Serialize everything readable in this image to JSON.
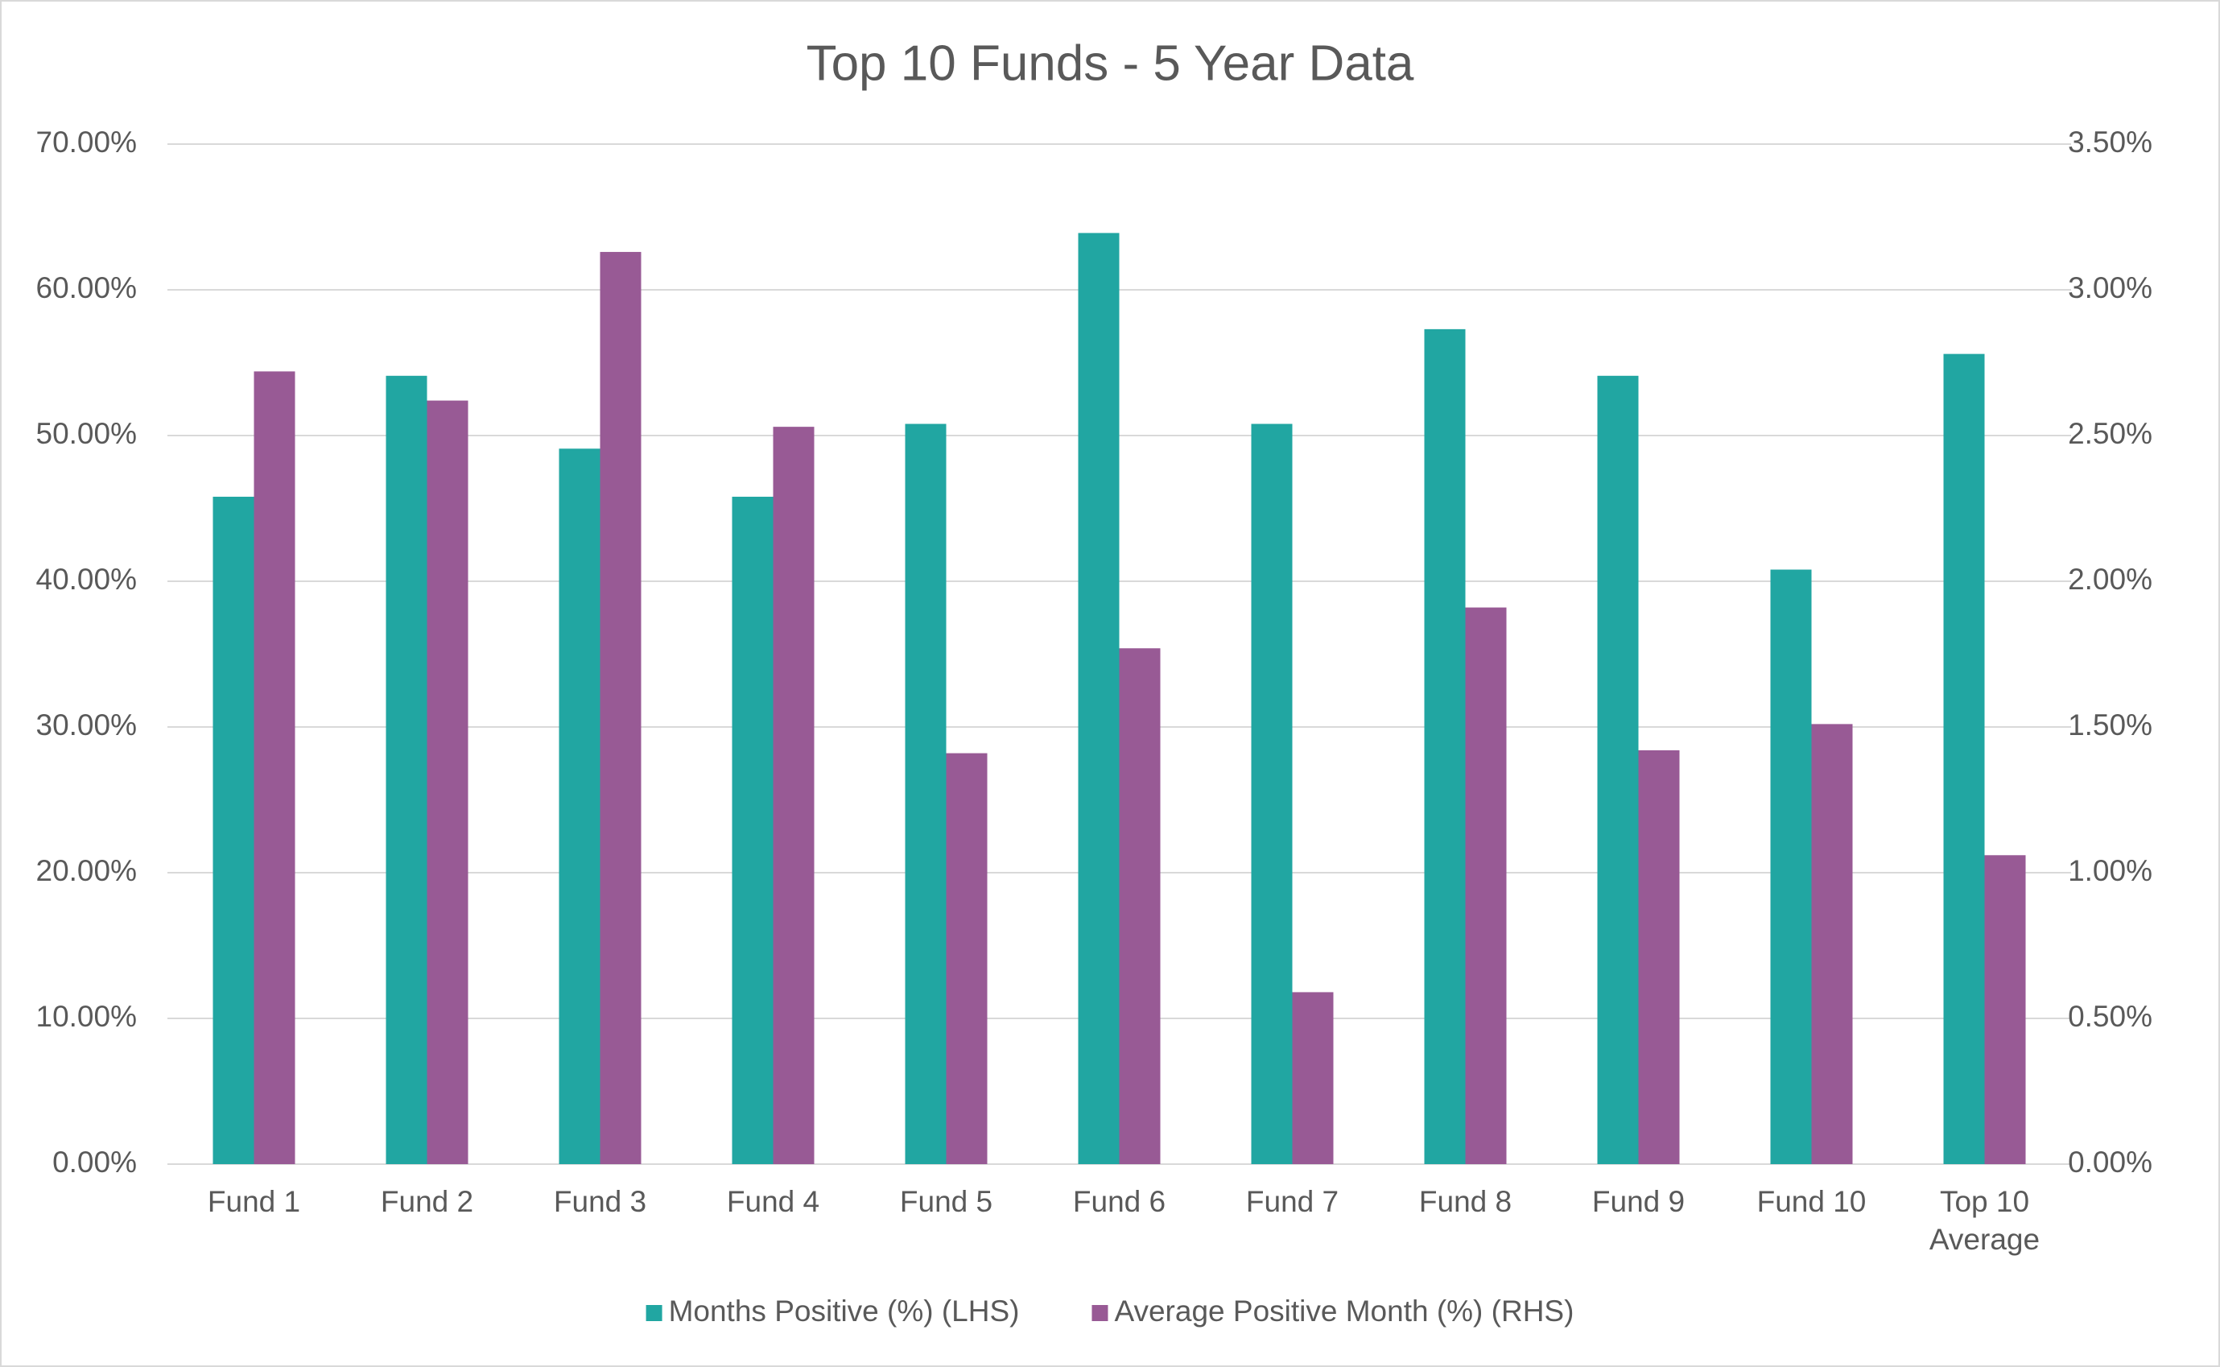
{
  "chart_data": {
    "type": "bar",
    "title": "Top 10 Funds - 5 Year Data",
    "categories": [
      "Fund 1",
      "Fund 2",
      "Fund 3",
      "Fund 4",
      "Fund 5",
      "Fund 6",
      "Fund 7",
      "Fund 8",
      "Fund 9",
      "Fund 10",
      "Top 10 Average"
    ],
    "series": [
      {
        "name": "Months Positive (%) (LHS)",
        "color": "#21a6a2",
        "axis": "y",
        "values": [
          45.8,
          54.1,
          49.1,
          45.8,
          50.8,
          63.9,
          50.8,
          57.3,
          54.1,
          40.8,
          55.6
        ]
      },
      {
        "name": "Average Positive Month (%) (RHS)",
        "color": "#985a95",
        "axis": "y2",
        "values": [
          2.72,
          2.62,
          3.13,
          2.53,
          1.41,
          1.77,
          0.59,
          1.91,
          1.42,
          1.51,
          1.06
        ]
      }
    ],
    "ylim": [
      0,
      70
    ],
    "yticks": [
      {
        "value": 0,
        "label": "0.00%"
      },
      {
        "value": 10,
        "label": "10.00%"
      },
      {
        "value": 20,
        "label": "20.00%"
      },
      {
        "value": 30,
        "label": "30.00%"
      },
      {
        "value": 40,
        "label": "40.00%"
      },
      {
        "value": 50,
        "label": "50.00%"
      },
      {
        "value": 60,
        "label": "60.00%"
      },
      {
        "value": 70,
        "label": "70.00%"
      }
    ],
    "y2lim": [
      0,
      3.5
    ],
    "y2ticks": [
      {
        "value": 0,
        "label": "0.00%"
      },
      {
        "value": 0.5,
        "label": "0.50%"
      },
      {
        "value": 1,
        "label": "1.00%"
      },
      {
        "value": 1.5,
        "label": "1.50%"
      },
      {
        "value": 2,
        "label": "2.00%"
      },
      {
        "value": 2.5,
        "label": "2.50%"
      },
      {
        "value": 3,
        "label": "3.00%"
      },
      {
        "value": 3.5,
        "label": "3.50%"
      }
    ],
    "grid": true,
    "legend": "bottom"
  }
}
